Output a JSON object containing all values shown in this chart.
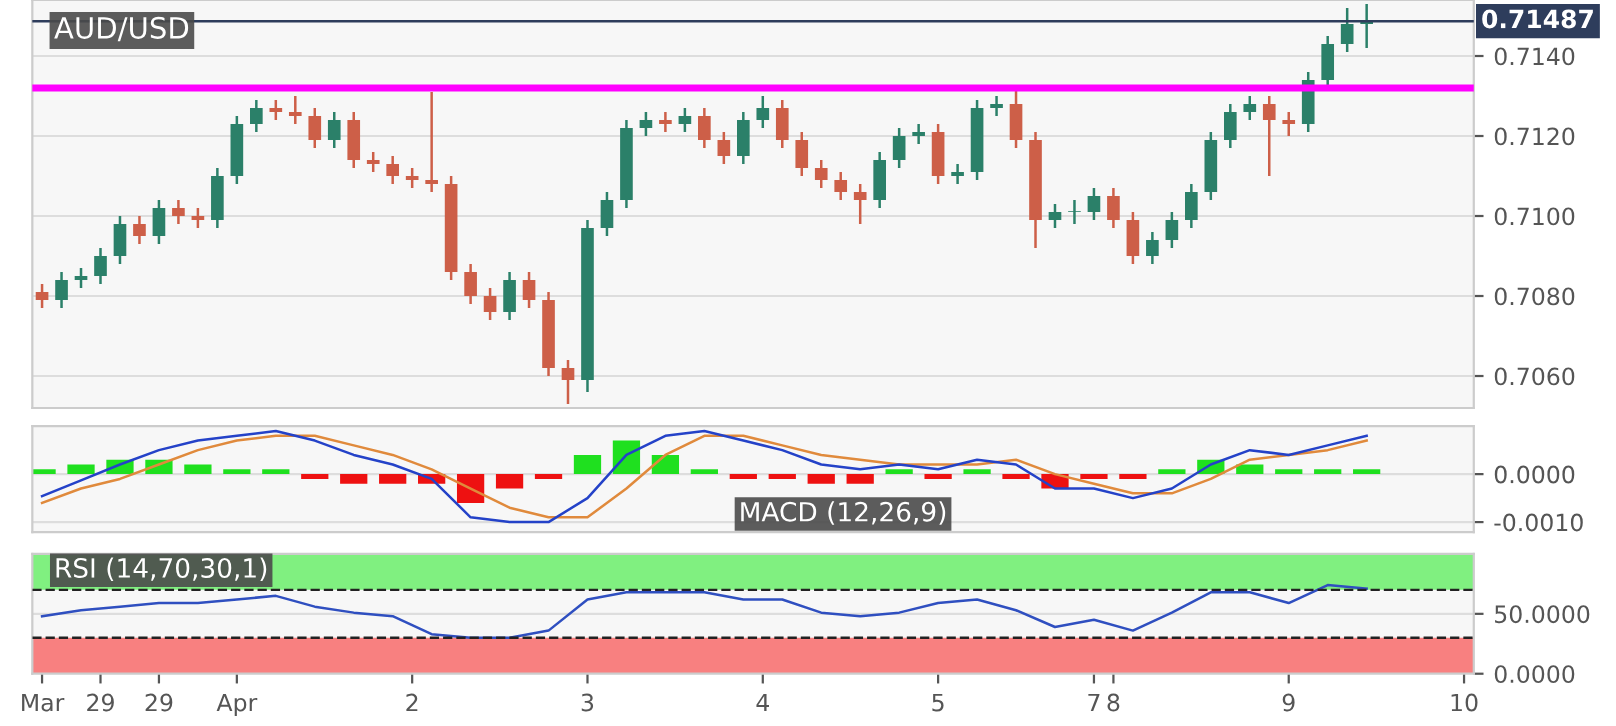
{
  "chart_data": [
    {
      "type": "candlestick",
      "title": "AUD/USD",
      "colors": [
        "#cd5f48",
        "#2b8069",
        "#2b8069",
        "#2b8069",
        "#2b8069",
        "#cd5f48",
        "#2b8069",
        "#cd5f48",
        "#cd5f48",
        "#2b8069",
        "#2b8069",
        "#2b8069",
        "#cd5f48",
        "#cd5f48",
        "#cd5f48",
        "#2b8069",
        "#cd5f48",
        "#cd5f48",
        "#cd5f48",
        "#cd5f48",
        "#cd5f48",
        "#cd5f48",
        "#cd5f48",
        "#cd5f48",
        "#2b8069",
        "#cd5f48",
        "#cd5f48",
        "#cd5f48",
        "#2b8069",
        "#2b8069",
        "#2b8069",
        "#2b8069",
        "#cd5f48",
        "#2b8069",
        "#cd5f48",
        "#cd5f48",
        "#2b8069",
        "#2b8069",
        "#cd5f48",
        "#cd5f48",
        "#cd5f48",
        "#cd5f48",
        "#cd5f48",
        "#2b8069",
        "#2b8069",
        "#2b8069",
        "#cd5f48",
        "#2b8069",
        "#2b8069",
        "#2b8069",
        "#cd5f48",
        "#cd5f48",
        "#2b8069",
        "#2b8069",
        "#2b8069",
        "#cd5f48",
        "#cd5f48",
        "#2b8069",
        "#2b8069",
        "#2b8069",
        "#2b8069",
        "#2b8069",
        "#2b8069",
        "#cd5f48",
        "#cd5f48",
        "#2b8069",
        "#2b8069",
        "#2b8069",
        "#2b8069",
        null,
        null,
        null,
        null,
        null
      ],
      "ohlc": [
        [
          0.7081,
          0.7083,
          0.7077,
          0.7079
        ],
        [
          0.7079,
          0.7086,
          0.7077,
          0.7084
        ],
        [
          0.7084,
          0.7087,
          0.7082,
          0.7085
        ],
        [
          0.7085,
          0.7092,
          0.7083,
          0.709
        ],
        [
          0.709,
          0.71,
          0.7088,
          0.7098
        ],
        [
          0.7098,
          0.71,
          0.7093,
          0.7095
        ],
        [
          0.7095,
          0.7104,
          0.7093,
          0.7102
        ],
        [
          0.7102,
          0.7104,
          0.7098,
          0.71
        ],
        [
          0.71,
          0.7102,
          0.7097,
          0.7099
        ],
        [
          0.7099,
          0.7112,
          0.7097,
          0.711
        ],
        [
          0.711,
          0.7125,
          0.7108,
          0.7123
        ],
        [
          0.7123,
          0.7129,
          0.7121,
          0.7127
        ],
        [
          0.7127,
          0.7129,
          0.7124,
          0.7126
        ],
        [
          0.7126,
          0.713,
          0.7123,
          0.7125
        ],
        [
          0.7125,
          0.7127,
          0.7117,
          0.7119
        ],
        [
          0.7119,
          0.7126,
          0.7117,
          0.7124
        ],
        [
          0.7124,
          0.7126,
          0.7112,
          0.7114
        ],
        [
          0.7114,
          0.7116,
          0.7111,
          0.7113
        ],
        [
          0.7113,
          0.7115,
          0.7108,
          0.711
        ],
        [
          0.711,
          0.7112,
          0.7107,
          0.7109
        ],
        [
          0.7109,
          0.7131,
          0.7106,
          0.7108
        ],
        [
          0.7108,
          0.711,
          0.7084,
          0.7086
        ],
        [
          0.7086,
          0.7088,
          0.7078,
          0.708
        ],
        [
          0.708,
          0.7082,
          0.7074,
          0.7076
        ],
        [
          0.7076,
          0.7086,
          0.7074,
          0.7084
        ],
        [
          0.7084,
          0.7086,
          0.7077,
          0.7079
        ],
        [
          0.7079,
          0.7081,
          0.706,
          0.7062
        ],
        [
          0.7062,
          0.7064,
          0.7053,
          0.7059
        ],
        [
          0.7059,
          0.7099,
          0.7056,
          0.7097
        ],
        [
          0.7097,
          0.7106,
          0.7095,
          0.7104
        ],
        [
          0.7104,
          0.7124,
          0.7102,
          0.7122
        ],
        [
          0.7122,
          0.7126,
          0.712,
          0.7124
        ],
        [
          0.7124,
          0.7126,
          0.7121,
          0.7123
        ],
        [
          0.7123,
          0.7127,
          0.7121,
          0.7125
        ],
        [
          0.7125,
          0.7127,
          0.7117,
          0.7119
        ],
        [
          0.7119,
          0.7121,
          0.7113,
          0.7115
        ],
        [
          0.7115,
          0.7126,
          0.7113,
          0.7124
        ],
        [
          0.7124,
          0.713,
          0.7122,
          0.7127
        ],
        [
          0.7127,
          0.7129,
          0.7117,
          0.7119
        ],
        [
          0.7119,
          0.7121,
          0.711,
          0.7112
        ],
        [
          0.7112,
          0.7114,
          0.7107,
          0.7109
        ],
        [
          0.7109,
          0.7111,
          0.7104,
          0.7106
        ],
        [
          0.7106,
          0.7108,
          0.7098,
          0.7104
        ],
        [
          0.7104,
          0.7116,
          0.7102,
          0.7114
        ],
        [
          0.7114,
          0.7122,
          0.7112,
          0.712
        ],
        [
          0.712,
          0.7123,
          0.7118,
          0.7121
        ],
        [
          0.7121,
          0.7123,
          0.7108,
          0.711
        ],
        [
          0.711,
          0.7113,
          0.7108,
          0.7111
        ],
        [
          0.7111,
          0.7129,
          0.7109,
          0.7127
        ],
        [
          0.7127,
          0.713,
          0.7125,
          0.7128
        ],
        [
          0.7128,
          0.7132,
          0.7117,
          0.7119
        ],
        [
          0.7119,
          0.7121,
          0.7092,
          0.7099
        ],
        [
          0.7099,
          0.7103,
          0.7097,
          0.7101
        ],
        [
          0.7101,
          0.7104,
          0.7098,
          0.7101
        ],
        [
          0.7101,
          0.7107,
          0.7099,
          0.7105
        ],
        [
          0.7105,
          0.7107,
          0.7097,
          0.7099
        ],
        [
          0.7099,
          0.7101,
          0.7088,
          0.709
        ],
        [
          0.709,
          0.7096,
          0.7088,
          0.7094
        ],
        [
          0.7094,
          0.7101,
          0.7092,
          0.7099
        ],
        [
          0.7099,
          0.7108,
          0.7097,
          0.7106
        ],
        [
          0.7106,
          0.7121,
          0.7104,
          0.7119
        ],
        [
          0.7119,
          0.7128,
          0.7117,
          0.7126
        ],
        [
          0.7126,
          0.713,
          0.7124,
          0.7128
        ],
        [
          0.7128,
          0.713,
          0.711,
          0.7124
        ],
        [
          0.7124,
          0.7126,
          0.712,
          0.7123
        ],
        [
          0.7123,
          0.7136,
          0.7121,
          0.7134
        ],
        [
          0.7134,
          0.7145,
          0.7132,
          0.7143
        ],
        [
          0.7143,
          0.7152,
          0.7141,
          0.7148
        ],
        [
          0.7148,
          0.7153,
          0.7142,
          0.7149
        ],
        null,
        null,
        null,
        null,
        null
      ],
      "ylim": [
        0.7052,
        0.7154
      ],
      "yticks": [
        {
          "value": 0.706,
          "label": "0.7060"
        },
        {
          "value": 0.708,
          "label": "0.7080"
        },
        {
          "value": 0.71,
          "label": "0.7100"
        },
        {
          "value": 0.712,
          "label": "0.7120"
        },
        {
          "value": 0.714,
          "label": "0.7140"
        }
      ],
      "ref_lines": [
        {
          "axis": "y",
          "value": 0.71487,
          "label": "0.71487",
          "color": "#2e3d5c"
        },
        {
          "axis": "y",
          "value": 0.7132,
          "color": "#ff00ff"
        }
      ],
      "grid": "y",
      "tick_labels": "y"
    },
    {
      "type": "line",
      "title": "MACD (12,26,9)",
      "series": [
        {
          "type": "bar",
          "colors": [
            "#1fe01f",
            null,
            "#1fe01f",
            null,
            "#1fe01f",
            null,
            "#1fe01f",
            null,
            "#1fe01f",
            null,
            "#1fe01f",
            null,
            "#1fe01f",
            null,
            "#ee1111",
            null,
            "#ee1111",
            null,
            "#ee1111",
            null,
            "#ee1111",
            null,
            "#ee1111",
            null,
            "#ee1111",
            null,
            "#ee1111",
            null,
            "#1fe01f",
            null,
            "#1fe01f",
            null,
            "#1fe01f",
            null,
            "#1fe01f",
            null,
            "#ee1111",
            null,
            "#ee1111",
            null,
            "#ee1111",
            null,
            "#ee1111",
            null,
            "#1fe01f",
            null,
            "#ee1111",
            null,
            "#1fe01f",
            null,
            "#ee1111",
            null,
            "#ee1111",
            null,
            "#ee1111",
            null,
            "#ee1111",
            null,
            "#1fe01f",
            null,
            "#1fe01f",
            null,
            "#1fe01f",
            null,
            "#1fe01f",
            null,
            "#1fe01f",
            null,
            "#1fe01f",
            null,
            null,
            null,
            null,
            null
          ],
          "values": [
            0.0001,
            null,
            0.0002,
            null,
            0.0003,
            null,
            0.0003,
            null,
            0.0002,
            null,
            0.0001,
            null,
            0.0001,
            null,
            -0.0001,
            null,
            -0.0002,
            null,
            -0.0002,
            null,
            -0.0002,
            null,
            -0.0006,
            null,
            -0.0003,
            null,
            -0.0001,
            null,
            0.0004,
            null,
            0.0007,
            null,
            0.0004,
            null,
            0.0001,
            null,
            -0.0001,
            null,
            -0.0001,
            null,
            -0.0002,
            null,
            -0.0002,
            null,
            0.0001,
            null,
            -0.0001,
            null,
            0.0001,
            null,
            -0.0001,
            null,
            -0.0003,
            null,
            -0.0001,
            null,
            -0.0001,
            null,
            0.0001,
            null,
            0.0003,
            null,
            0.0002,
            null,
            0.0001,
            null,
            0.0001,
            null,
            0.0001,
            null,
            null,
            null,
            null,
            null
          ]
        },
        {
          "type": "line",
          "color": "#e08a3c",
          "values": [
            -0.0006,
            null,
            -0.0003,
            null,
            -0.0001,
            null,
            0.0002,
            null,
            0.0005,
            null,
            0.0007,
            null,
            0.0008,
            null,
            0.0008,
            null,
            0.0006,
            null,
            0.0004,
            null,
            0.0001,
            null,
            -0.0003,
            null,
            -0.0007,
            null,
            -0.0009,
            null,
            -0.0009,
            null,
            -0.0003,
            null,
            0.0004,
            null,
            0.0008,
            null,
            0.0008,
            null,
            0.0006,
            null,
            0.0004,
            null,
            0.0003,
            null,
            0.0002,
            null,
            0.0002,
            null,
            0.0002,
            null,
            0.0003,
            null,
            0.0,
            null,
            -0.0002,
            null,
            -0.0004,
            null,
            -0.0004,
            null,
            -0.0001,
            null,
            0.0003,
            null,
            0.0004,
            null,
            0.0005,
            null,
            0.0007,
            null,
            null,
            null,
            null,
            null
          ]
        },
        {
          "type": "line",
          "color": "#2442c8",
          "values": [
            -0.00046,
            null,
            -0.00013,
            null,
            0.0002,
            null,
            0.0005,
            null,
            0.0007,
            null,
            0.0008,
            null,
            0.0009,
            null,
            0.0007,
            null,
            0.0004,
            null,
            0.0002,
            null,
            -0.0001,
            null,
            -0.0009,
            null,
            -0.001,
            null,
            -0.001,
            null,
            -0.0005,
            null,
            0.0004,
            null,
            0.0008,
            null,
            0.0009,
            null,
            0.0007,
            null,
            0.0005,
            null,
            0.0002,
            null,
            0.0001,
            null,
            0.0002,
            null,
            0.0001,
            null,
            0.0003,
            null,
            0.0002,
            null,
            -0.0003,
            null,
            -0.0003,
            null,
            -0.0005,
            null,
            -0.0003,
            null,
            0.0002,
            null,
            0.0005,
            null,
            0.0004,
            null,
            0.0006,
            null,
            0.0008,
            null,
            null,
            null,
            null,
            null
          ]
        }
      ],
      "ylim": [
        -0.00121,
        0.001
      ],
      "yticks": [
        {
          "value": -0.001,
          "label": "-0.0010"
        },
        {
          "value": 0.0,
          "label": "0.0000"
        }
      ],
      "grid": "y",
      "tick_labels": "y"
    },
    {
      "type": "line",
      "title": "RSI (14,70,30,1)",
      "categories": [
        "Mar",
        null,
        null,
        "29",
        null,
        null,
        "29",
        null,
        null,
        null,
        "Apr",
        null,
        null,
        null,
        null,
        null,
        null,
        null,
        null,
        "2",
        null,
        null,
        null,
        null,
        null,
        null,
        null,
        null,
        "3",
        null,
        null,
        null,
        null,
        null,
        null,
        null,
        null,
        "4",
        null,
        null,
        null,
        null,
        null,
        null,
        null,
        null,
        "5",
        null,
        null,
        null,
        null,
        null,
        null,
        null,
        "7",
        "8",
        null,
        null,
        null,
        null,
        null,
        null,
        null,
        null,
        "9",
        null,
        null,
        null,
        null,
        null,
        null,
        null,
        null,
        "10"
      ],
      "series": [
        {
          "type": "line",
          "color": "#2f4fc0",
          "values": [
            48,
            null,
            53,
            null,
            56,
            null,
            59,
            null,
            59,
            null,
            62,
            null,
            65,
            null,
            56,
            null,
            51,
            null,
            48,
            null,
            33,
            null,
            30,
            null,
            30,
            null,
            36,
            null,
            62,
            null,
            68,
            null,
            68,
            null,
            68,
            null,
            62,
            null,
            62,
            null,
            51,
            null,
            48,
            null,
            51,
            null,
            59,
            null,
            62,
            null,
            53,
            null,
            39,
            null,
            45,
            null,
            36,
            null,
            51,
            null,
            68,
            null,
            68,
            null,
            59,
            null,
            74,
            null,
            71,
            null,
            null,
            null,
            null,
            null
          ]
        }
      ],
      "bands": [
        {
          "axis": "y",
          "from": 70,
          "to": 100,
          "color": "#80f080"
        },
        {
          "axis": "y",
          "from": 0,
          "to": 30,
          "color": "#f88080"
        }
      ],
      "ref_lines": [
        {
          "axis": "y",
          "value": 70,
          "color": "#222222",
          "line_style": "dashed"
        },
        {
          "axis": "y",
          "value": 30,
          "color": "#222222",
          "line_style": "dashed"
        }
      ],
      "ylim": [
        0,
        100
      ],
      "yticks": [
        {
          "value": 0,
          "label": "0.0000"
        },
        {
          "value": 50,
          "label": "50.0000"
        }
      ],
      "grid": "y"
    }
  ]
}
